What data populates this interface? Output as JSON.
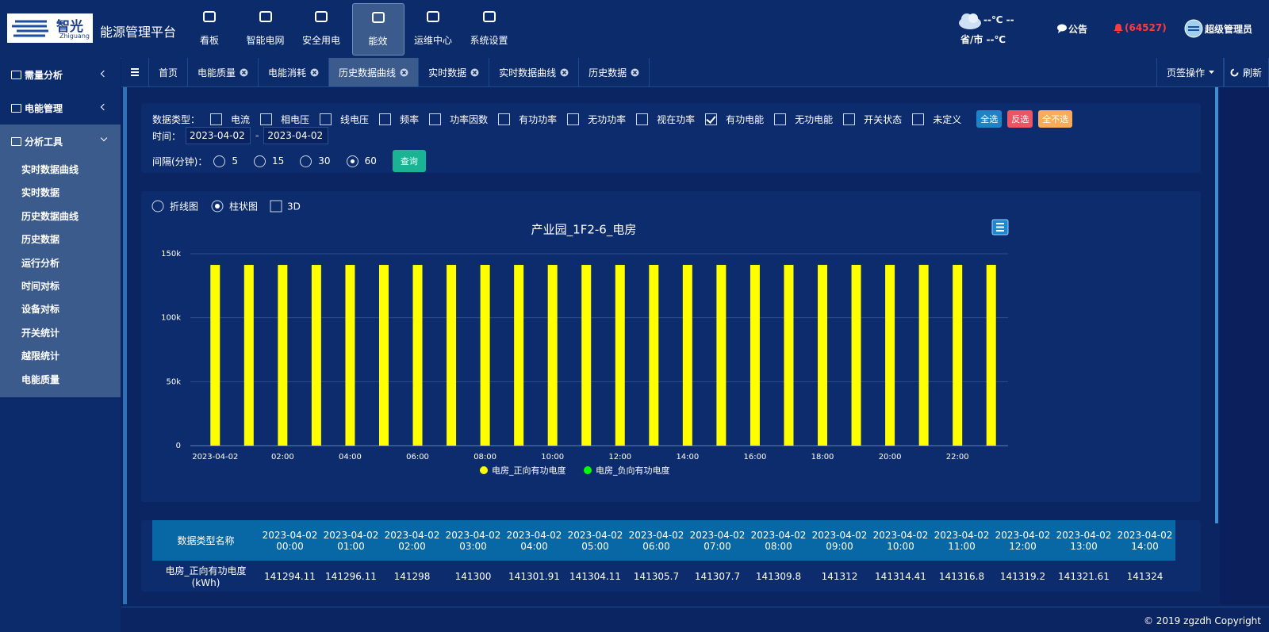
{
  "header": {
    "logo_cn": "智光",
    "logo_en": "Zhiguang",
    "title": "能源管理平台",
    "nav": [
      "看板",
      "智能电网",
      "安全用电",
      "能效",
      "运维中心",
      "系统设置"
    ],
    "active_nav": 3,
    "weather": "--℃ --",
    "city": "省/市 --℃",
    "notice": "公告",
    "alerts": "(64527)",
    "user": "超级管理员"
  },
  "tabs": {
    "items": [
      "首页",
      "电能质量",
      "电能消耗",
      "历史数据曲线",
      "实时数据",
      "实时数据曲线",
      "历史数据"
    ],
    "active": 3,
    "ops": "页签操作",
    "refresh": "刷新"
  },
  "sidebar": {
    "groups": [
      {
        "label": "需量分析",
        "open": false
      },
      {
        "label": "电能管理",
        "open": false
      },
      {
        "label": "分析工具",
        "open": true
      }
    ],
    "items": [
      "实时数据曲线",
      "实时数据",
      "历史数据曲线",
      "历史数据",
      "运行分析",
      "时间对标",
      "设备对标",
      "开关统计",
      "越限统计",
      "电能质量"
    ]
  },
  "filter": {
    "type_label": "数据类型：",
    "types": [
      {
        "label": "电流",
        "checked": false
      },
      {
        "label": "相电压",
        "checked": false
      },
      {
        "label": "线电压",
        "checked": false
      },
      {
        "label": "频率",
        "checked": false
      },
      {
        "label": "功率因数",
        "checked": false
      },
      {
        "label": "有功功率",
        "checked": false
      },
      {
        "label": "无功功率",
        "checked": false
      },
      {
        "label": "视在功率",
        "checked": false
      },
      {
        "label": "有功电能",
        "checked": true
      },
      {
        "label": "无功电能",
        "checked": false
      },
      {
        "label": "开关状态",
        "checked": false
      },
      {
        "label": "未定义",
        "checked": false
      }
    ],
    "select_all": "全选",
    "invert": "反选",
    "select_none": "全不选",
    "time_label": "时间：",
    "start": "2023-04-02",
    "dash": "-",
    "end": "2023-04-02",
    "interval_label": "间隔(分钟)：",
    "intervals": [
      5,
      15,
      30,
      60
    ],
    "interval": 60,
    "query": "查询"
  },
  "chart_view": {
    "line": "折线图",
    "bar": "柱状图",
    "three_d": "3D",
    "three_d_on": false
  },
  "chart_data": {
    "type": "bar",
    "title": "产业园_1F2-6_电房",
    "categories": [
      "2023-04-02",
      null,
      "02:00",
      null,
      "04:00",
      null,
      "06:00",
      null,
      "08:00",
      null,
      "10:00",
      null,
      "12:00",
      null,
      "14:00",
      null,
      "16:00",
      null,
      "18:00",
      null,
      "20:00",
      null,
      "22:00",
      null
    ],
    "series": [
      {
        "name": "电房_正向有功电度",
        "color": "#ffff00",
        "values": [
          141294.11,
          141296.11,
          141298,
          141300,
          141301.91,
          141304.11,
          141305.7,
          141307.7,
          141309.8,
          141312,
          141314.41,
          141316.8,
          141319.2,
          141321.61,
          141324,
          141326.3,
          141328.6,
          141331,
          141333.3,
          141335.6,
          141338,
          141340.3,
          141342.6,
          141345
        ]
      },
      {
        "name": "电房_负向有功电度",
        "color": "#00ff00",
        "values": [
          null,
          null,
          null,
          null,
          null,
          null,
          null,
          null,
          null,
          null,
          null,
          null,
          null,
          null,
          null,
          null,
          null,
          null,
          null,
          null,
          null,
          null,
          null,
          null
        ]
      }
    ],
    "ylim": [
      0,
      150000
    ],
    "yticks": [
      0,
      {
        "value": 50000,
        "label": "50k"
      },
      {
        "value": 100000,
        "label": "100k"
      },
      {
        "value": 150000,
        "label": "150k"
      }
    ],
    "grid": true,
    "legend": "bottom"
  },
  "table": {
    "header": "数据类型名称",
    "columns": [
      {
        "date": "2023-04-02",
        "time": "00:00"
      },
      {
        "date": "2023-04-02",
        "time": "01:00"
      },
      {
        "date": "2023-04-02",
        "time": "02:00"
      },
      {
        "date": "2023-04-02",
        "time": "03:00"
      },
      {
        "date": "2023-04-02",
        "time": "04:00"
      },
      {
        "date": "2023-04-02",
        "time": "05:00"
      },
      {
        "date": "2023-04-02",
        "time": "06:00"
      },
      {
        "date": "2023-04-02",
        "time": "07:00"
      },
      {
        "date": "2023-04-02",
        "time": "08:00"
      },
      {
        "date": "2023-04-02",
        "time": "09:00"
      },
      {
        "date": "2023-04-02",
        "time": "10:00"
      },
      {
        "date": "2023-04-02",
        "time": "11:00"
      },
      {
        "date": "2023-04-02",
        "time": "12:00"
      },
      {
        "date": "2023-04-02",
        "time": "13:00"
      },
      {
        "date": "2023-04-02",
        "time": "14:00"
      }
    ],
    "row_name": "电房_正向有功电度",
    "row_unit": "(kWh)"
  },
  "footer": "© 2019 zgzdh Copyright"
}
